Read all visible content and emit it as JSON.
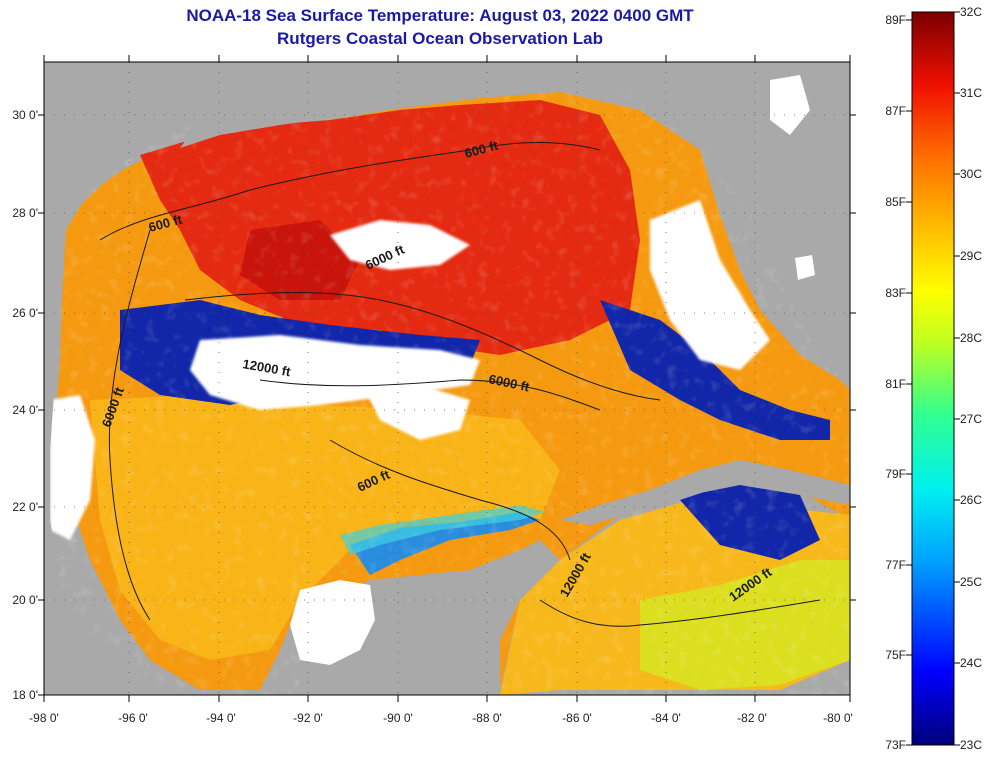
{
  "title": {
    "line1": "NOAA-18 Sea Surface Temperature:  August 03, 2022 0400 GMT",
    "line2": "Rutgers Coastal Ocean Observation Lab"
  },
  "axes": {
    "x_ticks": [
      "-98 0'",
      "-96 0'",
      "-94 0'",
      "-92 0'",
      "-90 0'",
      "-88 0'",
      "-86 0'",
      "-84 0'",
      "-82 0'",
      "-80 0'"
    ],
    "y_ticks": [
      "30 0'",
      "28 0'",
      "26 0'",
      "24 0'",
      "22 0'",
      "20 0'",
      "18 0'"
    ]
  },
  "contour_labels": [
    "600 ft",
    "600 ft",
    "6000 ft",
    "12000 ft",
    "6000 ft",
    "6000 ft",
    "600 ft",
    "12000 ft",
    "12000 ft"
  ],
  "colorbar": {
    "fahrenheit": [
      "89F",
      "87F",
      "85F",
      "83F",
      "81F",
      "79F",
      "77F",
      "75F",
      "73F"
    ],
    "celsius": [
      "32C",
      "31C",
      "30C",
      "29C",
      "28C",
      "27C",
      "26C",
      "25C",
      "24C",
      "23C"
    ]
  },
  "colors": {
    "title": "#1a1aa6",
    "land": "#a9a9a9",
    "cloud": "#ffffff"
  }
}
